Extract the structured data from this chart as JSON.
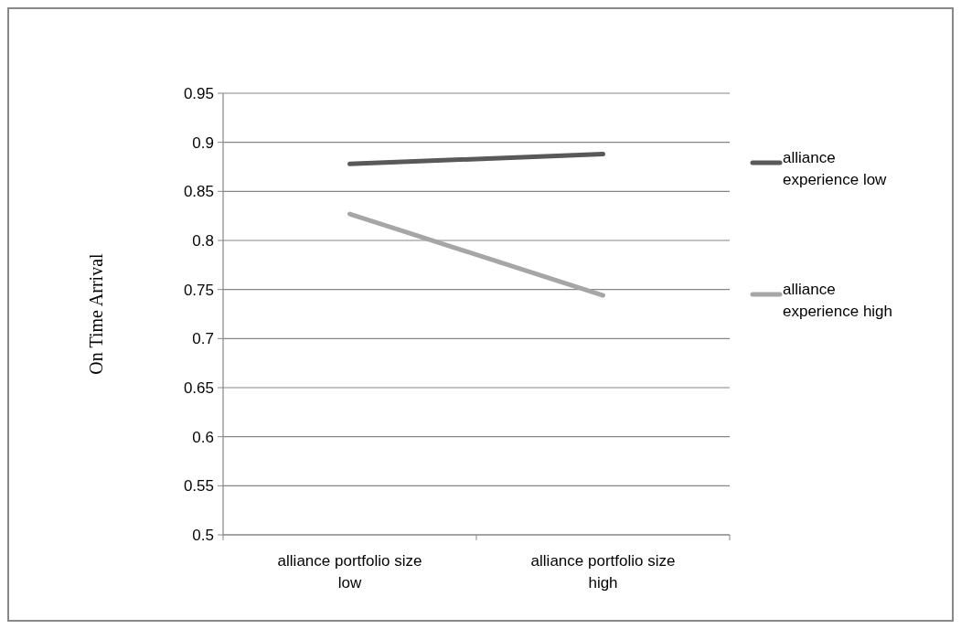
{
  "chart_data": {
    "type": "line",
    "ylabel": "On Time Arrival",
    "categories": [
      "alliance portfolio size low",
      "alliance portfolio size high"
    ],
    "series": [
      {
        "name": "alliance experience low",
        "color": "#595959",
        "values": [
          0.878,
          0.888
        ]
      },
      {
        "name": "alliance experience high",
        "color": "#a6a6a6",
        "values": [
          0.827,
          0.744
        ]
      }
    ],
    "ylim": [
      0.5,
      0.95
    ],
    "yticks": [
      0.5,
      0.55,
      0.6,
      0.65,
      0.7,
      0.75,
      0.8,
      0.85,
      0.9,
      0.95
    ],
    "grid": "y",
    "legend": "right",
    "line_style": "solid"
  }
}
